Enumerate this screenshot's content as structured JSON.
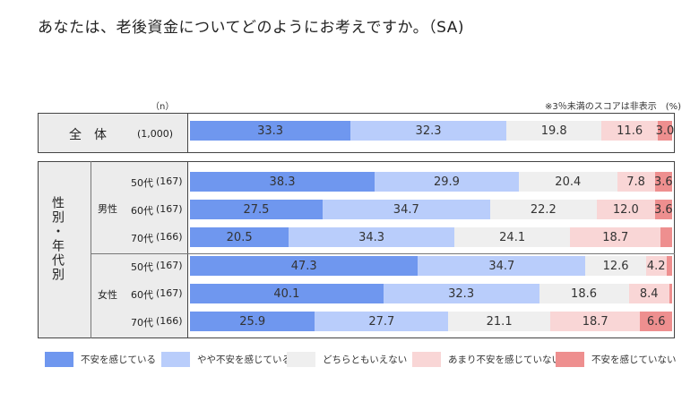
{
  "title": "あなたは、老後資金についてどのようにお考えですか。（SA)",
  "n_header": "（n）",
  "note": "※3％未満のスコアは非表示　(%)",
  "chart_data": {
    "type": "bar",
    "orientation": "horizontal",
    "stacked": "100%",
    "series_names": [
      "不安を感じている",
      "やや不安を感じている",
      "どちらともいえない",
      "あまり不安を感じていない",
      "不安を感じていない"
    ],
    "colors": [
      "#6f97ef",
      "#b9cdfb",
      "#efefef",
      "#f9d6d6",
      "#ee8f8f"
    ],
    "legend_position": "bottom",
    "total": {
      "label": "全体",
      "n": "(1,000)",
      "values": [
        33.3,
        32.3,
        19.8,
        11.6,
        3.0
      ],
      "labels": [
        "33.3",
        "32.3",
        "19.8",
        "11.6",
        "3.0"
      ]
    },
    "group_title": "性別・年代別",
    "groups": [
      {
        "label": "男性",
        "rows": [
          {
            "age": "50代",
            "n": "(167)",
            "values": [
              38.3,
              29.9,
              20.4,
              7.8,
              3.6
            ],
            "labels": [
              "38.3",
              "29.9",
              "20.4",
              "7.8",
              "3.6"
            ]
          },
          {
            "age": "60代",
            "n": "(167)",
            "values": [
              27.5,
              34.7,
              22.2,
              12.0,
              3.6
            ],
            "labels": [
              "27.5",
              "34.7",
              "22.2",
              "12.0",
              "3.6"
            ]
          },
          {
            "age": "70代",
            "n": "(166)",
            "values": [
              20.5,
              34.3,
              24.1,
              18.7,
              2.4
            ],
            "labels": [
              "20.5",
              "34.3",
              "24.1",
              "18.7",
              ""
            ]
          }
        ]
      },
      {
        "label": "女性",
        "rows": [
          {
            "age": "50代",
            "n": "(167)",
            "values": [
              47.3,
              34.7,
              12.6,
              4.2,
              1.2
            ],
            "labels": [
              "47.3",
              "34.7",
              "12.6",
              "4.2",
              ""
            ]
          },
          {
            "age": "60代",
            "n": "(167)",
            "values": [
              40.1,
              32.3,
              18.6,
              8.4,
              0.6
            ],
            "labels": [
              "40.1",
              "32.3",
              "18.6",
              "8.4",
              ""
            ]
          },
          {
            "age": "70代",
            "n": "(166)",
            "values": [
              25.9,
              27.7,
              21.1,
              18.7,
              6.6
            ],
            "labels": [
              "25.9",
              "27.7",
              "21.1",
              "18.7",
              "6.6"
            ]
          }
        ]
      }
    ]
  }
}
